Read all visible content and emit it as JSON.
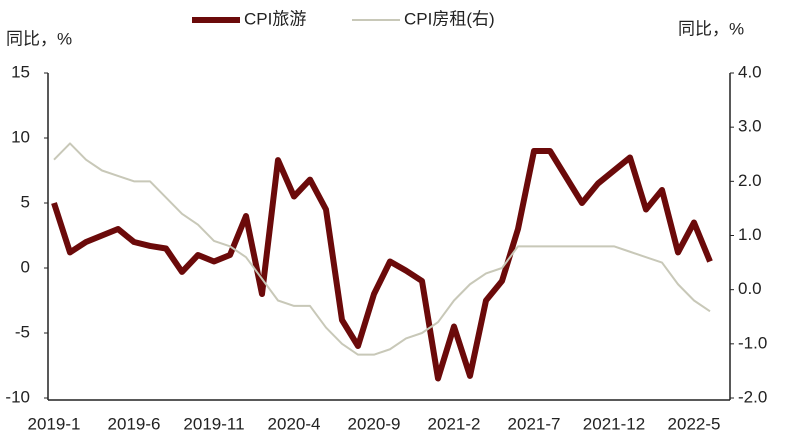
{
  "chart_data": {
    "type": "line",
    "y_label": "同比，%",
    "y2_label": "同比，%",
    "categories": [
      "2019-1",
      null,
      null,
      null,
      null,
      "2019-6",
      null,
      null,
      null,
      null,
      "2019-11",
      null,
      null,
      null,
      null,
      "2020-4",
      null,
      null,
      null,
      null,
      "2020-9",
      null,
      null,
      null,
      null,
      "2021-2",
      null,
      null,
      null,
      null,
      "2021-7",
      null,
      null,
      null,
      null,
      "2021-12",
      null,
      null,
      null,
      null,
      "2022-5",
      null
    ],
    "series": [
      {
        "name": "CPI旅游",
        "color": "#6b0a0a",
        "values": [
          5,
          1.2,
          2,
          2.5,
          3,
          2,
          1.7,
          1.5,
          -0.3,
          1,
          0.5,
          1,
          4,
          -2,
          8.3,
          5.5,
          6.8,
          4.5,
          -4,
          -6,
          -2,
          0.5,
          -0.2,
          -1,
          -8.5,
          -4.5,
          -8.3,
          -2.5,
          -1,
          3,
          9,
          9,
          7,
          5,
          6.5,
          7.5,
          8.5,
          4.5,
          6,
          1.2,
          3.5,
          0.5
        ]
      },
      {
        "name": "CPI房租(右)",
        "color": "#c8c8b8",
        "axis": "y2",
        "values": [
          2.4,
          2.7,
          2.4,
          2.2,
          2.1,
          2.0,
          2.0,
          1.7,
          1.4,
          1.2,
          0.9,
          0.8,
          0.6,
          0.2,
          -0.2,
          -0.3,
          -0.3,
          -0.7,
          -1.0,
          -1.2,
          -1.2,
          -1.1,
          -0.9,
          -0.8,
          -0.6,
          -0.2,
          0.1,
          0.3,
          0.4,
          0.8,
          0.8,
          0.8,
          0.8,
          0.8,
          0.8,
          0.8,
          0.7,
          0.6,
          0.5,
          0.1,
          -0.2,
          -0.4
        ]
      }
    ],
    "ylim": [
      -10,
      15
    ],
    "yticks": [
      -10,
      -5,
      0,
      5,
      10,
      15
    ],
    "y2lim": [
      -2,
      4
    ],
    "y2ticks": [
      {
        "value": -2,
        "label": "-2.0"
      },
      {
        "value": -1,
        "label": "-1.0"
      },
      {
        "value": 0,
        "label": "0.0"
      },
      {
        "value": 1,
        "label": "1.0"
      },
      {
        "value": 2,
        "label": "2.0"
      },
      {
        "value": 3,
        "label": "3.0"
      },
      {
        "value": 4,
        "label": "4.0"
      }
    ]
  }
}
